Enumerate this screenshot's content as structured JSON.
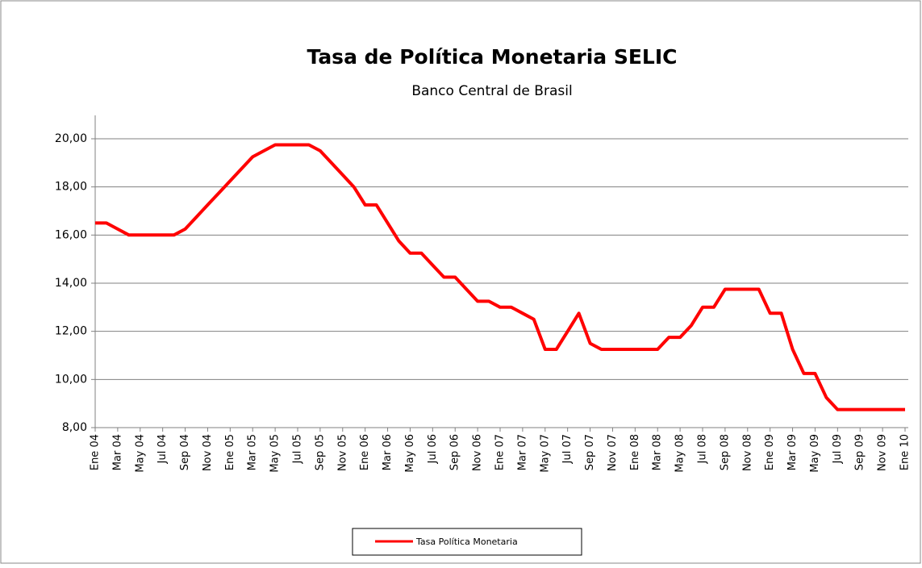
{
  "chart_data": {
    "type": "line",
    "title": "Tasa de Política Monetaria SELIC",
    "subtitle": "Banco Central de Brasil",
    "categories": [
      "Ene 04",
      null,
      "Mar 04",
      null,
      "May 04",
      null,
      "Jul 04",
      null,
      "Sep 04",
      null,
      "Nov 04",
      null,
      "Ene 05",
      null,
      "Mar 05",
      null,
      "May 05",
      null,
      "Jul 05",
      null,
      "Sep 05",
      null,
      "Nov 05",
      null,
      "Ene 06",
      null,
      "Mar 06",
      null,
      "May 06",
      null,
      "Jul 06",
      null,
      "Sep 06",
      null,
      "Nov 06",
      null,
      "Ene 07",
      null,
      "Mar 07",
      null,
      "May 07",
      null,
      "Jul 07",
      null,
      "Sep 07",
      null,
      "Nov 07",
      null,
      "Ene 08",
      null,
      "Mar 08",
      null,
      "May 08",
      null,
      "Jul 08",
      null,
      "Sep 08",
      null,
      "Nov 08",
      null,
      "Ene 09",
      null,
      "Mar 09",
      null,
      "May 09",
      null,
      "Jul 09",
      null,
      "Sep 09",
      null,
      "Nov 09",
      null,
      "Ene 10"
    ],
    "series": [
      {
        "name": "Tasa Política  Monetaria",
        "color": "#ff0000",
        "values": [
          16.5,
          16.5,
          16.25,
          16,
          16,
          16,
          16,
          16,
          16.25,
          16.75,
          17.25,
          17.75,
          18.25,
          18.75,
          19.25,
          19.5,
          19.75,
          19.75,
          19.75,
          19.75,
          19.5,
          19,
          18.5,
          18,
          17.25,
          17.25,
          16.5,
          15.75,
          15.25,
          15.25,
          14.75,
          14.25,
          14.25,
          13.75,
          13.25,
          13.25,
          13,
          13,
          12.75,
          12.5,
          11.25,
          11.25,
          12,
          12.75,
          11.5,
          11.25,
          11.25,
          11.25,
          11.25,
          11.25,
          11.25,
          11.75,
          11.75,
          12.25,
          13,
          13,
          13.75,
          13.75,
          13.75,
          13.75,
          12.75,
          12.75,
          11.25,
          10.25,
          10.25,
          9.25,
          8.75,
          8.75,
          8.75,
          8.75,
          8.75,
          8.75,
          8.75
        ]
      }
    ],
    "ylim": [
      8,
      20
    ],
    "yticks": [
      {
        "value": 8,
        "label": "8,00"
      },
      {
        "value": 10,
        "label": "10,00"
      },
      {
        "value": 12,
        "label": "12,00"
      },
      {
        "value": 14,
        "label": "14,00"
      },
      {
        "value": 16,
        "label": "16,00"
      },
      {
        "value": 18,
        "label": "18,00"
      },
      {
        "value": 20,
        "label": "20,00"
      }
    ],
    "grid": true,
    "legend": "bottom"
  }
}
